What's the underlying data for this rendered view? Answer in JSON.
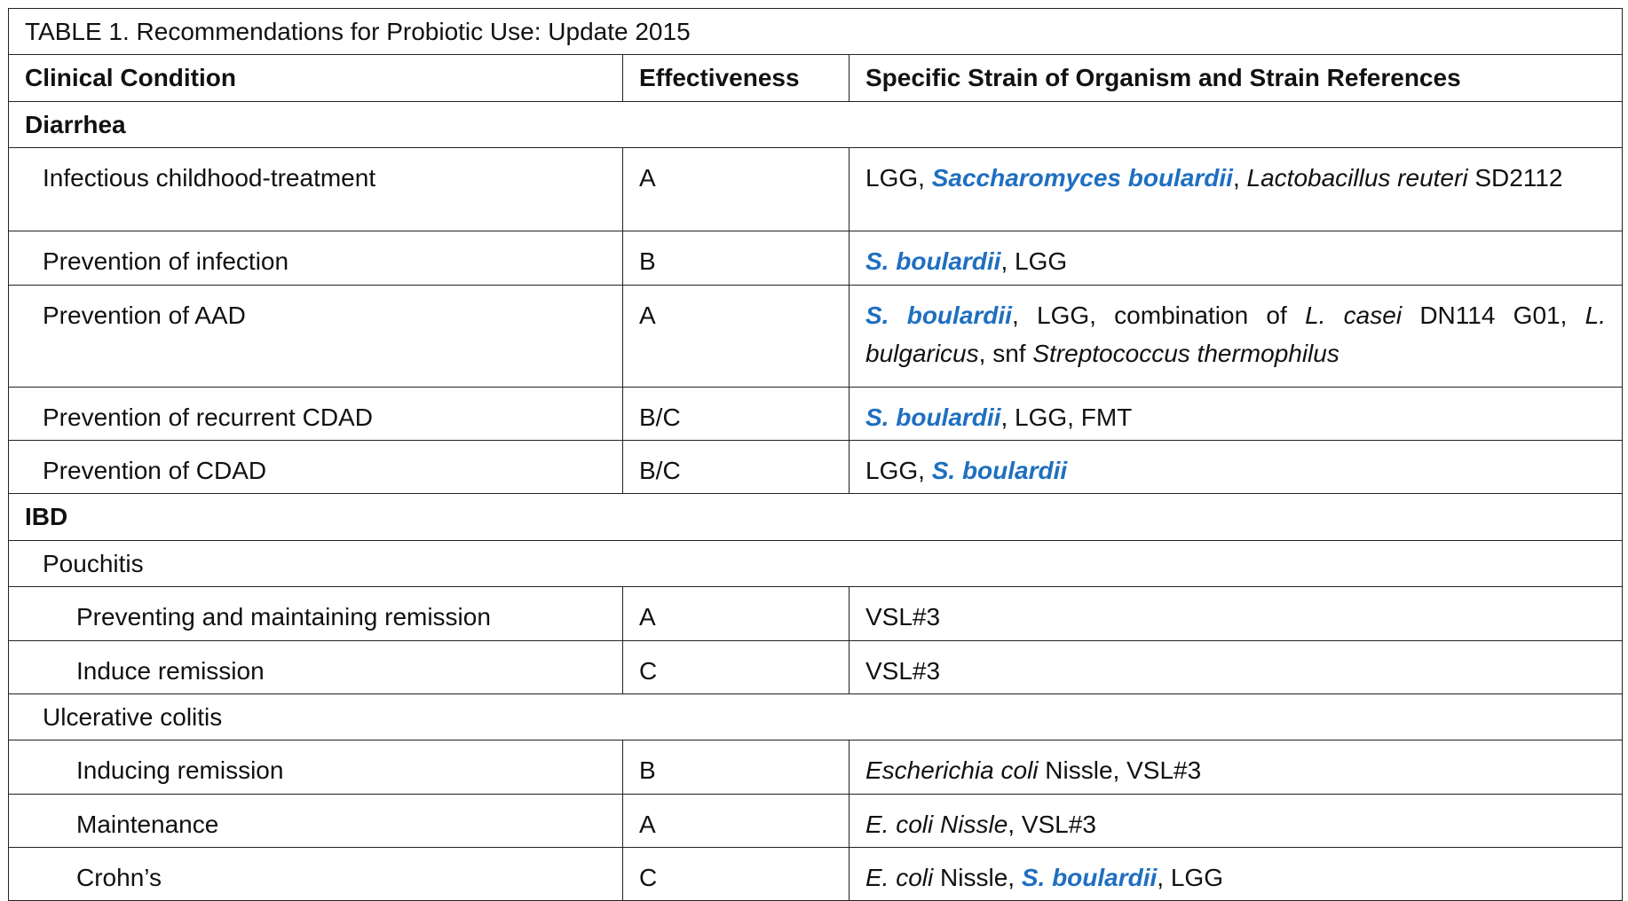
{
  "title": "TABLE 1. Recommendations for Probiotic Use: Update 2015",
  "header": [
    "Clinical Condition",
    "Effectiveness",
    "Specific Strain of Organism and Strain References"
  ],
  "rows": [
    {
      "kind": "section",
      "label": "Diarrhea"
    },
    {
      "kind": "item",
      "level": 1,
      "condition": "Infectious childhood-treatment",
      "effectiveness": "A",
      "strains": [
        {
          "text": "LGG, "
        },
        {
          "text": "Saccharomyces boulardii",
          "style": "organism"
        },
        {
          "text": ", "
        },
        {
          "text": "Lactobacillus reuteri",
          "style": "italic"
        },
        {
          "text": " SD2112"
        }
      ]
    },
    {
      "kind": "item",
      "level": 1,
      "condition": "Prevention of infection",
      "effectiveness": "B",
      "strains": [
        {
          "text": "S. boulardii",
          "style": "organism"
        },
        {
          "text": ", LGG"
        }
      ]
    },
    {
      "kind": "item",
      "level": 1,
      "condition": "Prevention of AAD",
      "effectiveness": "A",
      "strains": [
        {
          "text": "S. boulardii",
          "style": "organism"
        },
        {
          "text": ", LGG, combination of "
        },
        {
          "text": "L. casei",
          "style": "italic"
        },
        {
          "text": " DN114 G01, "
        },
        {
          "text": "L. bulgaricus",
          "style": "italic"
        },
        {
          "text": ", snf "
        },
        {
          "text": "Streptococcus thermophilus",
          "style": "italic"
        }
      ]
    },
    {
      "kind": "item",
      "level": 1,
      "condition": "Prevention of recurrent CDAD",
      "effectiveness": "B/C",
      "strains": [
        {
          "text": "S. boulardii",
          "style": "organism"
        },
        {
          "text": ", LGG, FMT"
        }
      ]
    },
    {
      "kind": "item",
      "level": 1,
      "condition": "Prevention of CDAD",
      "effectiveness": "B/C",
      "strains": [
        {
          "text": "LGG, "
        },
        {
          "text": "S. boulardii",
          "style": "organism"
        }
      ]
    },
    {
      "kind": "section",
      "label": "IBD"
    },
    {
      "kind": "subsection",
      "label": "Pouchitis"
    },
    {
      "kind": "item",
      "level": 2,
      "condition": "Preventing and maintaining remission",
      "effectiveness": "A",
      "strains": [
        {
          "text": "VSL#3"
        }
      ]
    },
    {
      "kind": "item",
      "level": 2,
      "condition": "Induce remission",
      "effectiveness": "C",
      "strains": [
        {
          "text": "VSL#3"
        }
      ]
    },
    {
      "kind": "subsection",
      "label": "Ulcerative colitis"
    },
    {
      "kind": "item",
      "level": 2,
      "condition": "Inducing remission",
      "effectiveness": "B",
      "strains": [
        {
          "text": "Escherichia coli",
          "style": "italic"
        },
        {
          "text": " Nissle, VSL#3"
        }
      ]
    },
    {
      "kind": "item",
      "level": 2,
      "condition": "Maintenance",
      "effectiveness": "A",
      "strains": [
        {
          "text": "E. coli Nissle",
          "style": "italic"
        },
        {
          "text": ", VSL#3"
        }
      ]
    },
    {
      "kind": "item",
      "level": 2,
      "condition": "Crohn’s",
      "effectiveness": "C",
      "strains": [
        {
          "text": "E. coli",
          "style": "italic"
        },
        {
          "text": " Nissle, "
        },
        {
          "text": "S. boulardii",
          "style": "organism"
        },
        {
          "text": ", LGG"
        }
      ]
    }
  ]
}
